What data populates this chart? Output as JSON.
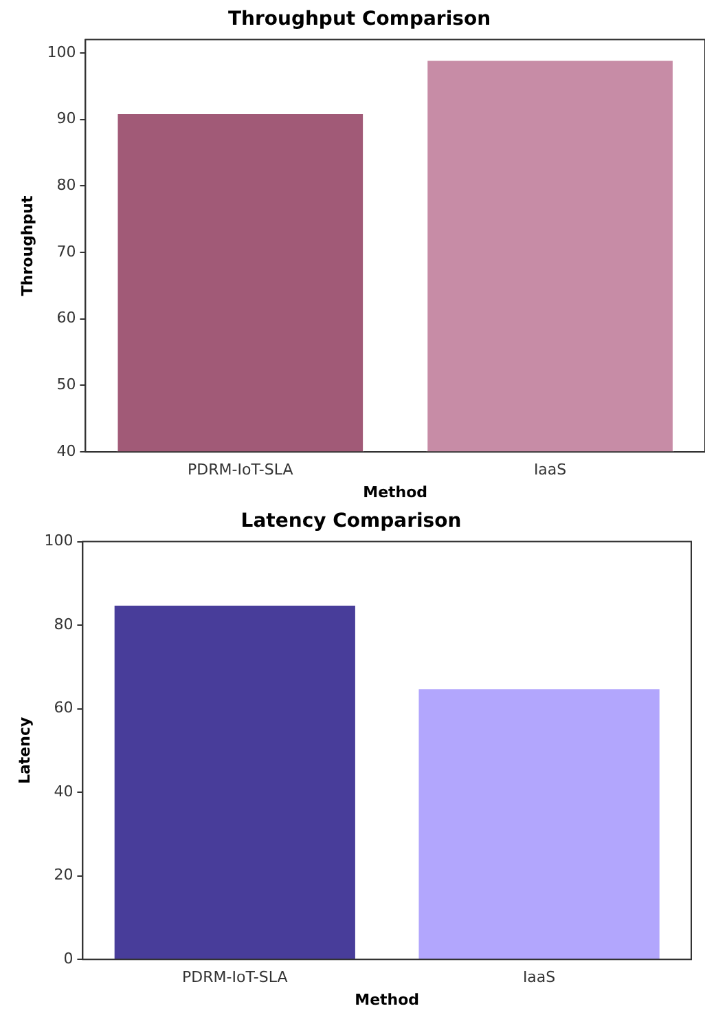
{
  "chart_data": [
    {
      "type": "bar",
      "title": "Throughput Comparison",
      "xlabel": "Method",
      "ylabel": "Throughput",
      "categories": [
        "PDRM-IoT-SLA",
        "IaaS"
      ],
      "values": [
        91,
        99
      ],
      "colors": [
        "#a15a77",
        "#c78ca6"
      ],
      "ylim": [
        40,
        102
      ],
      "yticks": [
        40,
        50,
        60,
        70,
        80,
        90,
        100
      ],
      "grid": false,
      "legend": false
    },
    {
      "type": "bar",
      "title": "Latency Comparison",
      "xlabel": "Method",
      "ylabel": "Latency",
      "categories": [
        "PDRM-IoT-SLA",
        "IaaS"
      ],
      "values": [
        85,
        65
      ],
      "colors": [
        "#483d9a",
        "#b2a6fd"
      ],
      "ylim": [
        0,
        100
      ],
      "yticks": [
        0,
        20,
        40,
        60,
        80,
        100
      ],
      "grid": false,
      "legend": false
    }
  ]
}
